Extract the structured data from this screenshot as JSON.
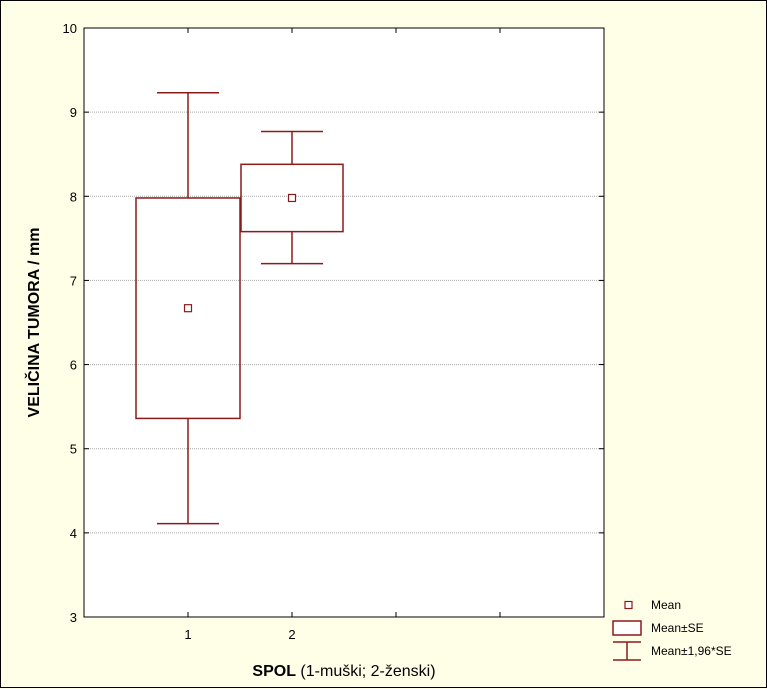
{
  "chart_data": {
    "type": "box",
    "xlabel_bold": "SPOL",
    "xlabel_rest": " (1-muški; 2-ženski)",
    "ylabel": "VELIČINA TUMORA / mm",
    "ylim": [
      3,
      10
    ],
    "yticks": [
      "3",
      "4",
      "5",
      "6",
      "7",
      "8",
      "9",
      "10"
    ],
    "xlim": [
      0,
      5
    ],
    "categories": [
      "1",
      "2"
    ],
    "grid": true,
    "legend_position": "bottom-right",
    "legend": [
      "Mean",
      "Mean±SE",
      "Mean±1,96*SE"
    ],
    "series": [
      {
        "category": "1",
        "mean": 6.67,
        "se_low": 5.36,
        "se_high": 7.98,
        "ci_low": 4.11,
        "ci_high": 9.23
      },
      {
        "category": "2",
        "mean": 7.98,
        "se_low": 7.58,
        "se_high": 8.38,
        "ci_low": 7.2,
        "ci_high": 8.77
      }
    ],
    "colors": {
      "mark": "#8b1a1a",
      "plot_bg": "#ffffff",
      "outer_bg": "#ffffe8",
      "grid": "#aaaaaa"
    }
  }
}
